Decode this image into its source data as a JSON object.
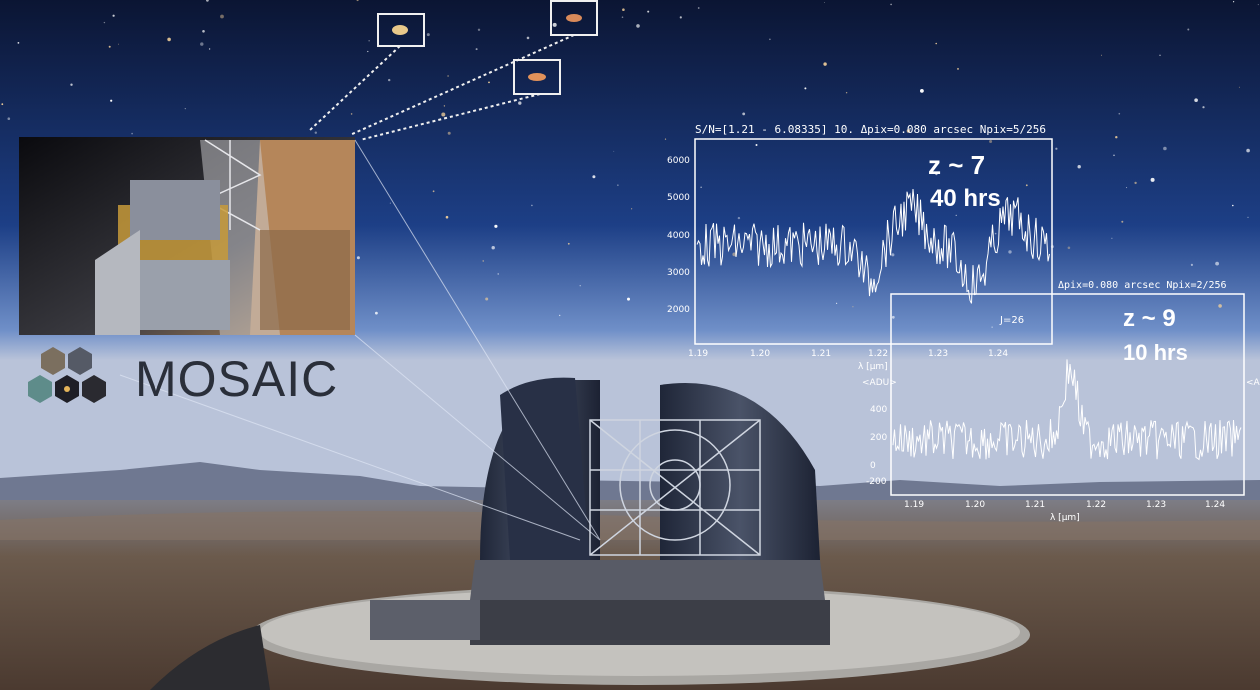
{
  "logo": {
    "text": "MOSAIC"
  },
  "colors": {
    "sky_top": "#0b1533",
    "sky_mid": "#1d3f86",
    "horizon": "#8aa3cf",
    "ground": "#6b5a4c",
    "dome": "#2b3245",
    "plot_line": "#ffffff"
  },
  "spectrum_top": {
    "title": "S/N=[1.21 - 6.08335] 10. Δpix=0.080 arcsec Npix=5/256",
    "label_z": "z ~ 7",
    "label_time": "40 hrs",
    "label_mag": "J=26",
    "y_ticks": [
      "6000",
      "5000",
      "4000",
      "3000",
      "2000"
    ],
    "x_ticks": [
      "1.19",
      "1.20",
      "1.21",
      "1.22",
      "1.23",
      "1.24"
    ],
    "x_label": "λ [µm]"
  },
  "spectrum_bottom": {
    "title": "Δpix=0.080 arcsec Npix=2/256",
    "label_z": "z ~ 9",
    "label_time": "10 hrs",
    "y_axis_label": "<ADU>",
    "y_ticks": [
      "400",
      "200",
      "0",
      "-200"
    ],
    "x_ticks": [
      "1.19",
      "1.20",
      "1.21",
      "1.22",
      "1.23",
      "1.24"
    ],
    "x_label": "λ [µm]"
  }
}
